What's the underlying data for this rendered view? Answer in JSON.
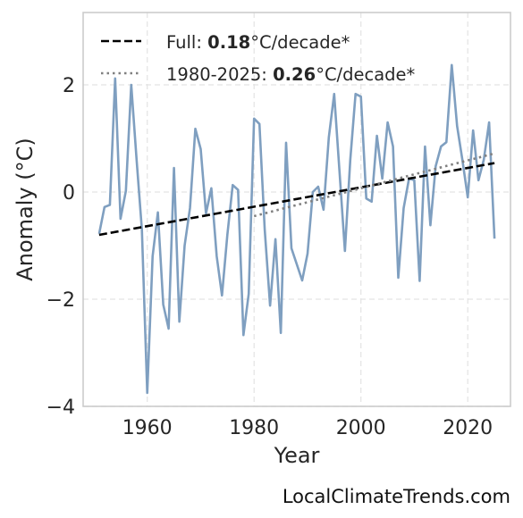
{
  "chart_data": {
    "type": "line",
    "xlabel": "Year",
    "ylabel": "Anomaly (°C)",
    "xlim": [
      1948,
      2028
    ],
    "ylim": [
      -4,
      3.35
    ],
    "xticks": [
      1960,
      1980,
      2000,
      2020
    ],
    "yticks": [
      -4,
      -2,
      0,
      2
    ],
    "ytick_labels": [
      "−4",
      "−2",
      "0",
      "2"
    ],
    "grid": true,
    "legend_position": "top-left",
    "legend": [
      {
        "prefix": "Full: ",
        "rate": "0.18",
        "suffix": "°C/decade*"
      },
      {
        "prefix": "1980-2025: ",
        "rate": "0.26",
        "suffix": "°C/decade*"
      }
    ],
    "series": [
      {
        "style": "line",
        "color": "#7f9fc0",
        "x": [
          1951,
          1952,
          1953,
          1954,
          1955,
          1956,
          1957,
          1958,
          1959,
          1960,
          1961,
          1962,
          1963,
          1964,
          1965,
          1966,
          1967,
          1968,
          1969,
          1970,
          1971,
          1972,
          1973,
          1974,
          1975,
          1976,
          1977,
          1978,
          1979,
          1980,
          1981,
          1982,
          1983,
          1984,
          1985,
          1986,
          1987,
          1988,
          1989,
          1990,
          1991,
          1992,
          1993,
          1994,
          1995,
          1996,
          1997,
          1998,
          1999,
          2000,
          2001,
          2002,
          2003,
          2004,
          2005,
          2006,
          2007,
          2008,
          2009,
          2010,
          2011,
          2012,
          2013,
          2014,
          2015,
          2016,
          2017,
          2018,
          2019,
          2020,
          2021,
          2022,
          2023,
          2024,
          2025
        ],
        "y": [
          -0.78,
          -0.28,
          -0.24,
          2.12,
          -0.5,
          0.02,
          2.0,
          0.6,
          -0.7,
          -3.75,
          -1.2,
          -0.38,
          -2.1,
          -2.55,
          0.45,
          -2.42,
          -1.0,
          -0.3,
          1.18,
          0.8,
          -0.4,
          0.07,
          -1.2,
          -1.93,
          -0.8,
          0.13,
          0.04,
          -2.67,
          -1.9,
          1.37,
          1.27,
          -0.7,
          -2.12,
          -0.88,
          -2.63,
          0.92,
          -1.05,
          -1.35,
          -1.65,
          -1.15,
          0.0,
          0.1,
          -0.33,
          1.02,
          1.83,
          0.37,
          -1.1,
          0.6,
          1.83,
          1.78,
          -0.12,
          -0.18,
          1.05,
          0.25,
          1.3,
          0.85,
          -1.6,
          -0.3,
          0.25,
          0.22,
          -1.66,
          0.85,
          -0.62,
          0.48,
          0.85,
          0.93,
          2.37,
          1.23,
          0.6,
          -0.1,
          1.15,
          0.22,
          0.6,
          1.3,
          -0.87
        ]
      },
      {
        "name": "Full",
        "style": "dashed",
        "color": "#000000",
        "x": [
          1951,
          2025
        ],
        "y": [
          -0.8,
          0.54
        ]
      },
      {
        "name": "1980-2025",
        "style": "dotted",
        "color": "#808080",
        "x": [
          1980,
          2025
        ],
        "y": [
          -0.45,
          0.72
        ]
      }
    ]
  },
  "credit": "LocalClimateTrends.com"
}
